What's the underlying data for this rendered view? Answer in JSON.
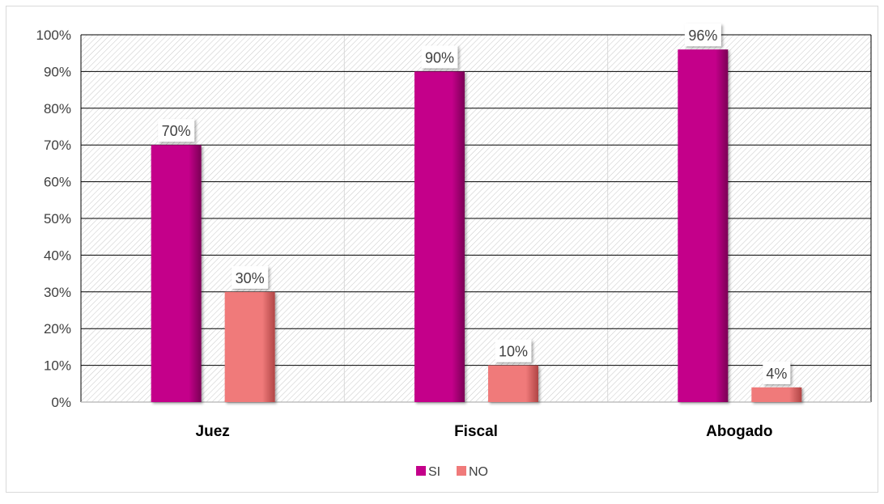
{
  "chart_data": {
    "type": "bar",
    "categories": [
      "Juez",
      "Fiscal",
      "Abogado"
    ],
    "series": [
      {
        "name": "SI",
        "values": [
          70,
          90,
          96
        ],
        "labels": [
          "70%",
          "90%",
          "96%"
        ],
        "color": "#c4008a"
      },
      {
        "name": "NO",
        "values": [
          30,
          10,
          4
        ],
        "labels": [
          "30%",
          "10%",
          "4%"
        ],
        "color": "#f07a7a"
      }
    ],
    "y_ticks": [
      "0%",
      "10%",
      "20%",
      "30%",
      "40%",
      "50%",
      "60%",
      "70%",
      "80%",
      "90%",
      "100%"
    ],
    "ylim": [
      0,
      100
    ],
    "grid": true,
    "legend": {
      "position": "bottom",
      "entries": [
        "SI",
        "NO"
      ]
    },
    "title": "",
    "xlabel": "",
    "ylabel": ""
  }
}
